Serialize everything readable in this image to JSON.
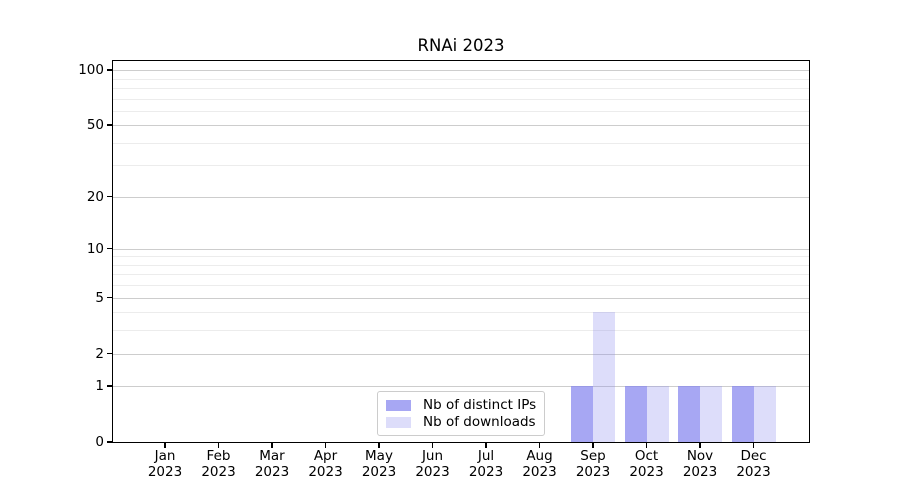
{
  "title": "RNAi 2023",
  "legend": {
    "items": [
      {
        "label": "Nb of distinct IPs"
      },
      {
        "label": "Nb of downloads"
      }
    ]
  },
  "axes": {
    "y_tick_labels": [
      "100",
      "50",
      "20",
      "10",
      "5",
      "2",
      "1",
      "0"
    ],
    "x_tick_labels": [
      "Jan 2023",
      "Feb 2023",
      "Mar 2023",
      "Apr 2023",
      "May 2023",
      "Jun 2023",
      "Jul 2023",
      "Aug 2023",
      "Sep 2023",
      "Oct 2023",
      "Nov 2023",
      "Dec 2023"
    ]
  },
  "chart_data": {
    "type": "bar",
    "title": "RNAi 2023",
    "categories": [
      "Jan 2023",
      "Feb 2023",
      "Mar 2023",
      "Apr 2023",
      "May 2023",
      "Jun 2023",
      "Jul 2023",
      "Aug 2023",
      "Sep 2023",
      "Oct 2023",
      "Nov 2023",
      "Dec 2023"
    ],
    "series": [
      {
        "name": "Nb of distinct IPs",
        "color": "rgba(133,133,238,0.72)",
        "values": [
          0,
          0,
          0,
          0,
          0,
          0,
          0,
          0,
          1,
          1,
          1,
          1
        ]
      },
      {
        "name": "Nb of downloads",
        "color": "rgba(133,133,238,0.28)",
        "values": [
          0,
          0,
          0,
          0,
          0,
          0,
          0,
          0,
          4,
          1,
          1,
          1
        ]
      }
    ],
    "xlabel": "",
    "ylabel": "",
    "y_scale": "log10(1+x)",
    "ylim": [
      0,
      112
    ],
    "y_major_ticks": [
      0,
      1,
      2,
      5,
      10,
      20,
      50,
      100
    ],
    "y_minor_ticks": [
      3,
      4,
      6,
      7,
      8,
      9,
      30,
      40,
      60,
      70,
      80,
      90
    ],
    "grid": "horizontal-major-and-minor",
    "legend_position": "lower center",
    "colors": {
      "major_grid": "#cdcdcd",
      "minor_grid": "#ececec",
      "spine": "#000000",
      "background": "#ffffff"
    }
  }
}
